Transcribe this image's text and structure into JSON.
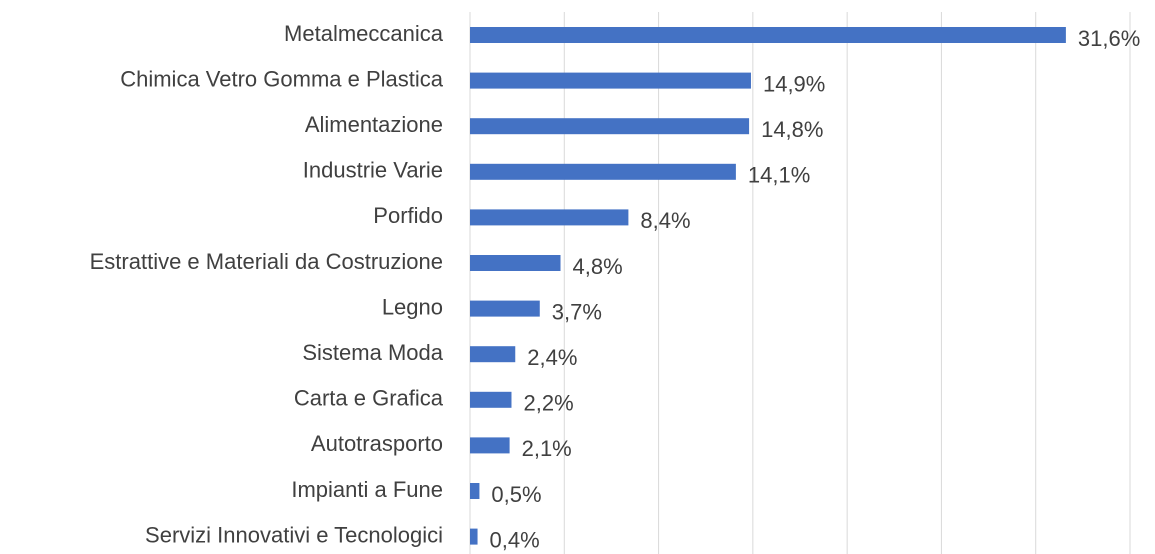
{
  "chart_data": {
    "type": "bar",
    "orientation": "horizontal",
    "categories": [
      "Metalmeccanica",
      "Chimica Vetro Gomma e Plastica",
      "Alimentazione",
      "Industrie Varie",
      "Porfido",
      "Estrattive e Materiali da Costruzione",
      "Legno",
      "Sistema Moda",
      "Carta e Grafica",
      "Autotrasporto",
      "Impianti a Fune",
      "Servizi Innovativi e Tecnologici"
    ],
    "values": [
      31.6,
      14.9,
      14.8,
      14.1,
      8.4,
      4.8,
      3.7,
      2.4,
      2.2,
      2.1,
      0.5,
      0.4
    ],
    "value_labels": [
      "31,6%",
      "14,9%",
      "14,8%",
      "14,1%",
      "8,4%",
      "4,8%",
      "3,7%",
      "2,4%",
      "2,2%",
      "2,1%",
      "0,5%",
      "0,4%"
    ],
    "color": "#4472c4",
    "xlim": [
      0,
      35
    ],
    "xticks": [
      0,
      5,
      10,
      15,
      20,
      25,
      30,
      35
    ],
    "grid": true
  }
}
